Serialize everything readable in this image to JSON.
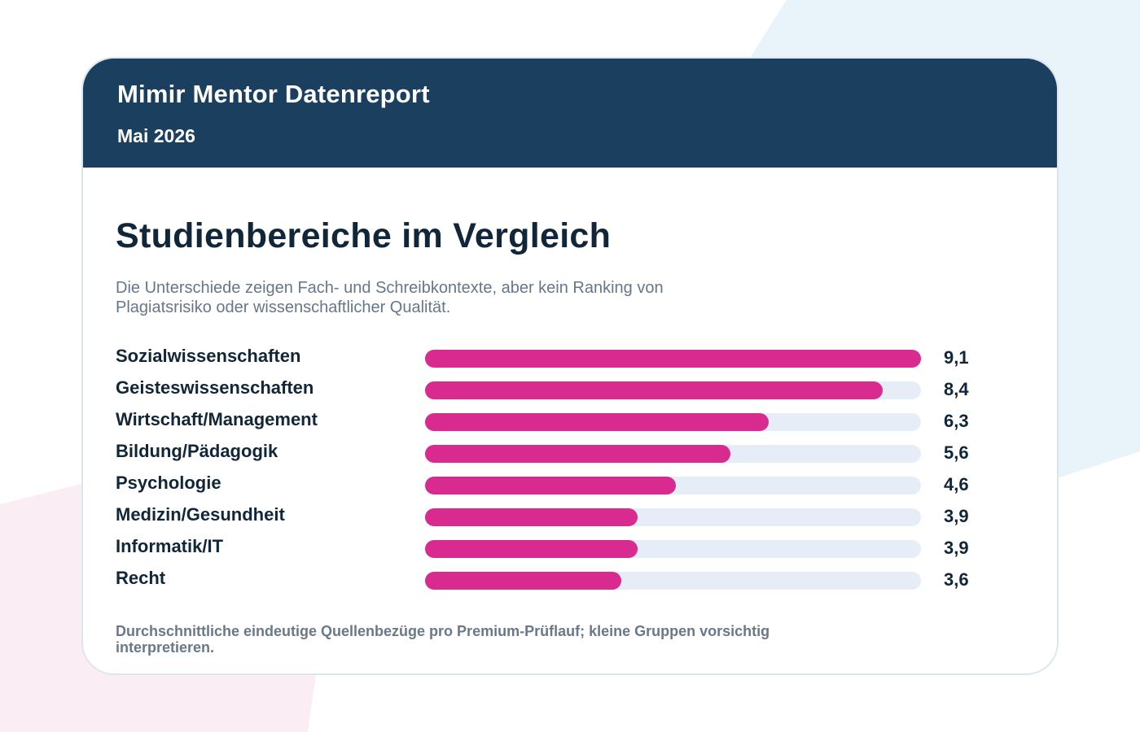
{
  "header": {
    "brand": "Mimir Mentor Datenreport",
    "date": "Mai 2026"
  },
  "colors": {
    "header_bg": "#1a3f5f",
    "bar": "#d82a8f",
    "track": "#e7edf6",
    "bg_blue": "#e9f3fa",
    "bg_pink": "#fbedf4"
  },
  "chart_data": {
    "type": "bar",
    "orientation": "horizontal",
    "title": "Studienbereiche im Vergleich",
    "subtitle": "Die Unterschiede zeigen Fach- und Schreibkontexte, aber kein Ranking von Plagiatsrisiko oder wissenschaftlicher Qualität.",
    "categories": [
      "Sozialwissenschaften",
      "Geisteswissenschaften",
      "Wirtschaft/Management",
      "Bildung/Pädagogik",
      "Psychologie",
      "Medizin/Gesundheit",
      "Informatik/IT",
      "Recht"
    ],
    "values": [
      9.1,
      8.4,
      6.3,
      5.6,
      4.6,
      3.9,
      3.9,
      3.6
    ],
    "value_labels": [
      "9,1",
      "8,4",
      "6,3",
      "5,6",
      "4,6",
      "3,9",
      "3,9",
      "3,6"
    ],
    "xlim": [
      0,
      9.1
    ],
    "grid": false,
    "footnote": "Durchschnittliche eindeutige Quellenbezüge pro Premium-Prüflauf; kleine Gruppen vorsichtig interpretieren."
  }
}
